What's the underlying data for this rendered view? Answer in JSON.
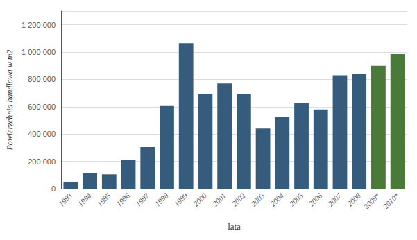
{
  "chart_data": {
    "type": "bar",
    "categories": [
      "1993",
      "1994",
      "1995",
      "1996",
      "1997",
      "1998",
      "1999",
      "2000",
      "2001",
      "2002",
      "2003",
      "2004",
      "2005",
      "2006",
      "2007",
      "2008",
      "2009*",
      "2010*"
    ],
    "values": [
      50000,
      115000,
      105000,
      210000,
      305000,
      605000,
      1065000,
      695000,
      770000,
      690000,
      440000,
      525000,
      630000,
      580000,
      830000,
      840000,
      900000,
      985000
    ],
    "colors": [
      "#355c7d",
      "#355c7d",
      "#355c7d",
      "#355c7d",
      "#355c7d",
      "#355c7d",
      "#355c7d",
      "#355c7d",
      "#355c7d",
      "#355c7d",
      "#355c7d",
      "#355c7d",
      "#355c7d",
      "#355c7d",
      "#355c7d",
      "#355c7d",
      "#4a7a3a",
      "#4a7a3a"
    ],
    "ylabel": "Powierzchnia handlowa w m2",
    "xlabel": "lata",
    "ylim": [
      0,
      1300000
    ],
    "yticks": [
      0,
      {
        "value": 200000,
        "label": "200 000"
      },
      {
        "value": 400000,
        "label": "400 000"
      },
      {
        "value": 600000,
        "label": "600 000"
      },
      {
        "value": 800000,
        "label": "800 000"
      },
      {
        "value": 1000000,
        "label": "1 000 000"
      },
      {
        "value": 1200000,
        "label": "1 200 000"
      }
    ],
    "grid": true
  }
}
